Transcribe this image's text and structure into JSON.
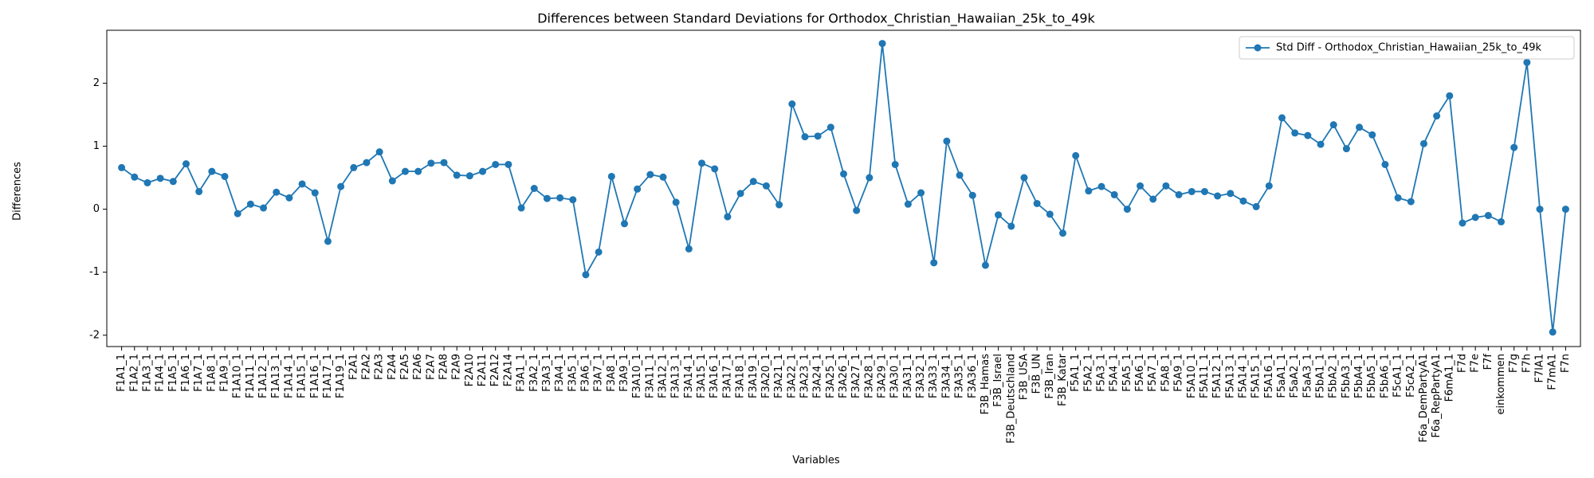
{
  "chart_data": {
    "type": "line",
    "title": "Differences between Standard Deviations for Orthodox_Christian_Hawaiian_25k_to_49k",
    "x_label": "Variables",
    "y_label": "Differences",
    "categories": [
      "F1A1_1",
      "F1A2_1",
      "F1A3_1",
      "F1A4_1",
      "F1A5_1",
      "F1A6_1",
      "F1A7_1",
      "F1A8_1",
      "F1A9_1",
      "F1A10_1",
      "F1A11_1",
      "F1A12_1",
      "F1A13_1",
      "F1A14_1",
      "F1A15_1",
      "F1A16_1",
      "F1A17_1",
      "F1A19_1",
      "F2A1",
      "F2A2",
      "F2A3",
      "F2A4",
      "F2A5",
      "F2A6",
      "F2A7",
      "F2A8",
      "F2A9",
      "F2A10",
      "F2A11",
      "F2A12",
      "F2A14",
      "F3A1_1",
      "F3A2_1",
      "F3A3_1",
      "F3A4_1",
      "F3A5_1",
      "F3A6_1",
      "F3A7_1",
      "F3A8_1",
      "F3A9_1",
      "F3A10_1",
      "F3A11_1",
      "F3A12_1",
      "F3A13_1",
      "F3A14_1",
      "F3A15_1",
      "F3A16_1",
      "F3A17_1",
      "F3A18_1",
      "F3A19_1",
      "F3A20_1",
      "F3A21_1",
      "F3A22_1",
      "F3A23_1",
      "F3A24_1",
      "F3A25_1",
      "F3A26_1",
      "F3A27_1",
      "F3A28_1",
      "F3A29_1",
      "F3A30_1",
      "F3A31_1",
      "F3A32_1",
      "F3A33_1",
      "F3A34_1",
      "F3A35_1",
      "F3A36_1",
      "F3B_Hamas",
      "F3B_Israel",
      "F3B_Deutschland",
      "F3B_USA",
      "F3B_UN",
      "F3B_Iran",
      "F3B_Katar",
      "F5A1_1",
      "F5A2_1",
      "F5A3_1",
      "F5A4_1",
      "F5A5_1",
      "F5A6_1",
      "F5A7_1",
      "F5A8_1",
      "F5A9_1",
      "F5A10_1",
      "F5A11_1",
      "F5A12_1",
      "F5A13_1",
      "F5A14_1",
      "F5A15_1",
      "F5A16_1",
      "F5aA1_1",
      "F5aA2_1",
      "F5aA3_1",
      "F5bA1_1",
      "F5bA2_1",
      "F5bA3_1",
      "F5bA4_1",
      "F5bA5_1",
      "F5bA6_1",
      "F5cA1_1",
      "F5cA2_1",
      "F6a_DemPartyA1",
      "F6a_RepPartyA1",
      "F6mA1_1",
      "F7d",
      "F7e",
      "F7f",
      "einkommen",
      "F7g",
      "F7h",
      "F7lA1",
      "F7mA1",
      "F7n"
    ],
    "series": [
      {
        "name": "Std Diff - Orthodox_Christian_Hawaiian_25k_to_49k",
        "color": "#1f77b4",
        "values": [
          0.66,
          0.51,
          0.42,
          0.49,
          0.44,
          0.72,
          0.28,
          0.6,
          0.52,
          -0.07,
          0.08,
          0.02,
          0.27,
          0.18,
          0.4,
          0.26,
          -0.51,
          0.36,
          0.66,
          0.74,
          0.91,
          0.45,
          0.6,
          0.6,
          0.73,
          0.74,
          0.54,
          0.53,
          0.6,
          0.71,
          0.71,
          0.02,
          0.33,
          0.17,
          0.18,
          0.15,
          -1.04,
          -0.68,
          0.52,
          -0.23,
          0.32,
          0.55,
          0.51,
          0.11,
          -0.63,
          0.73,
          0.64,
          -0.12,
          0.25,
          0.44,
          0.37,
          0.07,
          1.67,
          1.15,
          1.16,
          1.3,
          0.56,
          -0.02,
          0.5,
          2.63,
          0.71,
          0.08,
          0.26,
          -0.85,
          1.08,
          0.54,
          0.22,
          -0.89,
          -0.09,
          -0.27,
          0.5,
          0.09,
          -0.08,
          -0.38,
          0.85,
          0.29,
          0.36,
          0.23,
          0.0,
          0.37,
          0.16,
          0.37,
          0.23,
          0.28,
          0.28,
          0.21,
          0.25,
          0.13,
          0.04,
          0.37,
          1.45,
          1.21,
          1.17,
          1.03,
          1.34,
          0.96,
          1.3,
          1.18,
          0.71,
          0.18,
          0.12,
          1.04,
          1.48,
          1.8,
          -0.22,
          -0.13,
          -0.1,
          -0.2,
          0.98,
          2.33,
          0.0,
          -1.95,
          0.0
        ]
      }
    ],
    "ylim": [
      -2.18,
      2.84
    ],
    "yticks": [
      -2,
      -1,
      0,
      1,
      2
    ],
    "legend": "upper right",
    "grid": false
  }
}
